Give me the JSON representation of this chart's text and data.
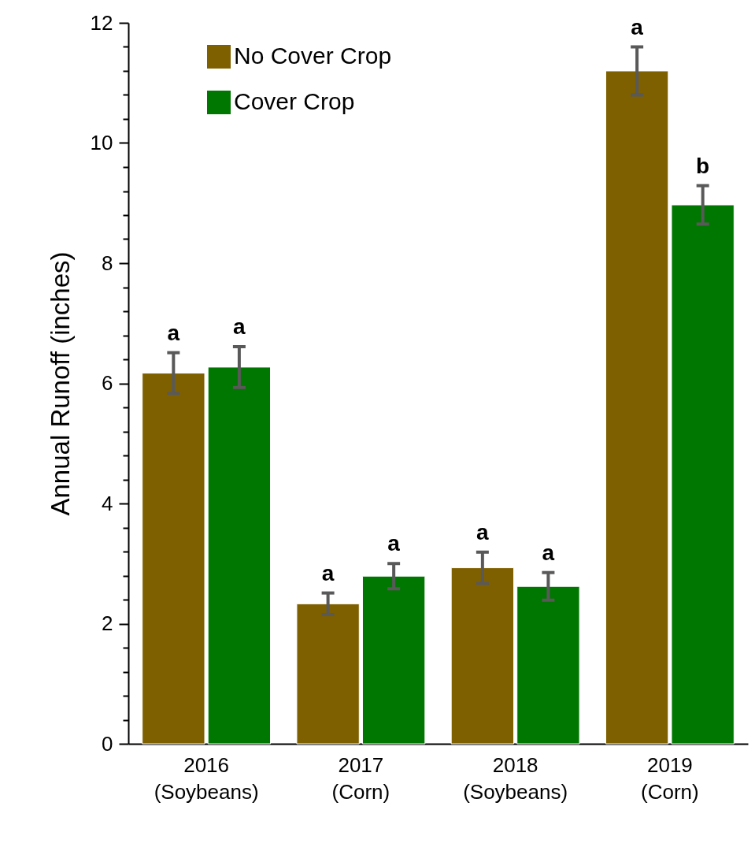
{
  "chart_data": {
    "type": "bar",
    "ylabel": "Annual Runoff (inches)",
    "categories": [
      "2016\n(Soybeans)",
      "2017\n(Corn)",
      "2018\n(Soybeans)",
      "2019\n(Corn)"
    ],
    "series": [
      {
        "name": "No Cover Crop",
        "color": "#7f6000",
        "values": [
          6.17,
          2.33,
          2.93,
          11.2
        ],
        "errors": [
          0.34,
          0.18,
          0.26,
          0.4
        ],
        "value_labels": [
          "a",
          "a",
          "a",
          "a"
        ]
      },
      {
        "name": "Cover Crop",
        "color": "#007700",
        "values": [
          6.27,
          2.79,
          2.62,
          8.97
        ],
        "errors": [
          0.34,
          0.21,
          0.23,
          0.32
        ],
        "value_labels": [
          "a",
          "a",
          "a",
          "b"
        ]
      }
    ],
    "ylim": [
      0,
      12
    ],
    "yticks": [
      0,
      {
        "value": 0.4,
        "label": null
      },
      {
        "value": 0.8,
        "label": null
      },
      {
        "value": 1.2,
        "label": null
      },
      {
        "value": 1.6,
        "label": null
      },
      2,
      {
        "value": 2.4,
        "label": null
      },
      {
        "value": 2.8,
        "label": null
      },
      {
        "value": 3.2,
        "label": null
      },
      {
        "value": 3.6,
        "label": null
      },
      4,
      {
        "value": 4.4,
        "label": null
      },
      {
        "value": 4.8,
        "label": null
      },
      {
        "value": 5.2,
        "label": null
      },
      {
        "value": 5.6,
        "label": null
      },
      6,
      {
        "value": 6.4,
        "label": null
      },
      {
        "value": 6.8,
        "label": null
      },
      {
        "value": 7.2,
        "label": null
      },
      {
        "value": 7.6,
        "label": null
      },
      8,
      {
        "value": 8.4,
        "label": null
      },
      {
        "value": 8.8,
        "label": null
      },
      {
        "value": 9.2,
        "label": null
      },
      {
        "value": 9.6,
        "label": null
      },
      10,
      {
        "value": 10.4,
        "label": null
      },
      {
        "value": 10.8,
        "label": null
      },
      {
        "value": 11.2,
        "label": null
      },
      {
        "value": 11.6,
        "label": null
      },
      12
    ],
    "grid": false,
    "legend": "top left"
  }
}
